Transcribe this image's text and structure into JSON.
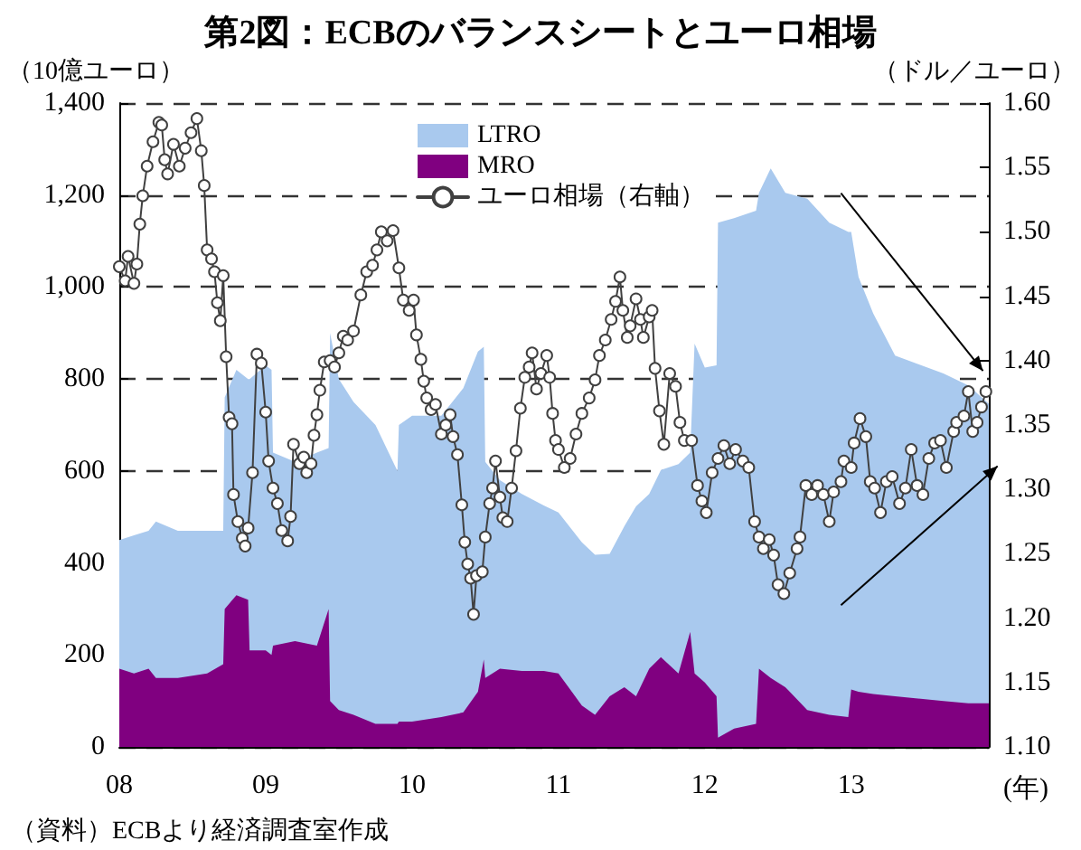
{
  "chart_data": {
    "type": "area",
    "title": "第2図：ECBのバランスシートとユーロ相場",
    "ylabel": "（10億ユーロ）",
    "y2label": "（ドル／ユーロ）",
    "xlabel": "(年)",
    "annotations": [
      "（資料）ECBより経済調査室作成"
    ],
    "stacked": true,
    "grid": "y",
    "legend": "top right",
    "line_style": "solid",
    "xlim": [
      2008,
      2013.94
    ],
    "xticks": [
      {
        "value": 2008,
        "label": "08"
      },
      {
        "value": 2009,
        "label": "09"
      },
      {
        "value": 2010,
        "label": "10"
      },
      {
        "value": 2011,
        "label": "11"
      },
      {
        "value": 2012,
        "label": "12"
      },
      {
        "value": 2013,
        "label": "13"
      }
    ],
    "ylim": [
      0,
      1400
    ],
    "yticks": [
      0,
      200,
      400,
      600,
      800,
      {
        "value": 1000,
        "label": "1,000"
      },
      {
        "value": 1200,
        "label": "1,200"
      },
      {
        "value": 1400,
        "label": "1,400"
      }
    ],
    "y2lim": [
      1.1,
      1.6
    ],
    "y2ticks": [
      {
        "value": 1.1,
        "label": "1.10"
      },
      1.15,
      {
        "value": 1.2,
        "label": "1.20"
      },
      1.25,
      {
        "value": 1.3,
        "label": "1.30"
      },
      1.35,
      {
        "value": 1.4,
        "label": "1.40"
      },
      1.45,
      {
        "value": 1.5,
        "label": "1.50"
      },
      1.55,
      {
        "value": 1.6,
        "label": "1.60"
      }
    ],
    "x": [
      2008.0,
      2008.1,
      2008.2,
      2008.25,
      2008.4,
      2008.6,
      2008.71,
      2008.72,
      2008.8,
      2008.88,
      2008.89,
      2009.0,
      2009.04,
      2009.05,
      2009.2,
      2009.35,
      2009.43,
      2009.44,
      2009.5,
      2009.6,
      2009.75,
      2009.9,
      2009.91,
      2010.0,
      2010.2,
      2010.35,
      2010.45,
      2010.49,
      2010.5,
      2010.6,
      2010.75,
      2010.9,
      2011.0,
      2011.16,
      2011.25,
      2011.35,
      2011.45,
      2011.53,
      2011.62,
      2011.7,
      2011.82,
      2011.9,
      2011.93,
      2012.0,
      2012.08,
      2012.09,
      2012.2,
      2012.35,
      2012.37,
      2012.45,
      2012.55,
      2012.7,
      2012.85,
      2012.98,
      2013.0,
      2013.05,
      2013.15,
      2013.3,
      2013.63,
      2013.8,
      2013.94
    ],
    "series": [
      {
        "name": "MRO",
        "color": "#800080",
        "values": [
          170,
          160,
          170,
          150,
          150,
          160,
          180,
          300,
          330,
          320,
          210,
          210,
          200,
          220,
          230,
          220,
          300,
          100,
          80,
          70,
          50,
          50,
          55,
          55,
          65,
          75,
          120,
          190,
          150,
          170,
          165,
          165,
          160,
          90,
          70,
          110,
          130,
          110,
          170,
          195,
          160,
          250,
          160,
          140,
          110,
          20,
          40,
          50,
          170,
          150,
          130,
          80,
          70,
          65,
          125,
          120,
          115,
          110,
          100,
          95,
          95
        ]
      },
      {
        "name": "LTRO",
        "color": "#a9c9ee",
        "values": [
          280,
          300,
          300,
          340,
          320,
          310,
          290,
          460,
          490,
          480,
          590,
          620,
          620,
          420,
          390,
          420,
          350,
          800,
          720,
          680,
          650,
          550,
          645,
          665,
          655,
          705,
          740,
          680,
          470,
          410,
          385,
          360,
          350,
          355,
          348,
          310,
          350,
          413,
          380,
          407,
          455,
          390,
          717,
          685,
          720,
          1120,
          1110,
          1116,
          1035,
          1108,
          1075,
          1112,
          1070,
          1055,
          995,
          902,
          828,
          741,
          712,
          691,
          651
        ]
      },
      {
        "name": "ユーロ相場（右軸）",
        "type": "line",
        "marker": "circle",
        "axis": "y2",
        "color": "#404040",
        "x": [
          2008.0,
          2008.04,
          2008.06,
          2008.1,
          2008.12,
          2008.14,
          2008.16,
          2008.19,
          2008.23,
          2008.27,
          2008.29,
          2008.31,
          2008.33,
          2008.37,
          2008.41,
          2008.45,
          2008.49,
          2008.53,
          2008.56,
          2008.58,
          2008.6,
          2008.63,
          2008.65,
          2008.67,
          2008.69,
          2008.71,
          2008.73,
          2008.75,
          2008.77,
          2008.78,
          2008.81,
          2008.84,
          2008.86,
          2008.88,
          2008.91,
          2008.94,
          2008.97,
          2009.0,
          2009.02,
          2009.05,
          2009.08,
          2009.11,
          2009.15,
          2009.17,
          2009.19,
          2009.23,
          2009.26,
          2009.28,
          2009.31,
          2009.33,
          2009.35,
          2009.37,
          2009.4,
          2009.44,
          2009.47,
          2009.5,
          2009.53,
          2009.56,
          2009.6,
          2009.65,
          2009.69,
          2009.73,
          2009.76,
          2009.79,
          2009.83,
          2009.87,
          2009.91,
          2009.94,
          2009.98,
          2010.01,
          2010.03,
          2010.06,
          2010.08,
          2010.1,
          2010.13,
          2010.16,
          2010.2,
          2010.23,
          2010.26,
          2010.28,
          2010.31,
          2010.34,
          2010.36,
          2010.38,
          2010.4,
          2010.42,
          2010.44,
          2010.48,
          2010.5,
          2010.53,
          2010.55,
          2010.57,
          2010.6,
          2010.62,
          2010.65,
          2010.68,
          2010.71,
          2010.74,
          2010.77,
          2010.8,
          2010.82,
          2010.85,
          2010.88,
          2010.92,
          2010.94,
          2010.96,
          2010.98,
          2011.0,
          2011.04,
          2011.08,
          2011.12,
          2011.16,
          2011.21,
          2011.25,
          2011.28,
          2011.32,
          2011.36,
          2011.39,
          2011.42,
          2011.44,
          2011.47,
          2011.49,
          2011.53,
          2011.56,
          2011.58,
          2011.62,
          2011.64,
          2011.66,
          2011.69,
          2011.72,
          2011.76,
          2011.8,
          2011.83,
          2011.86,
          2011.91,
          2011.95,
          2011.98,
          2012.01,
          2012.05,
          2012.09,
          2012.13,
          2012.17,
          2012.21,
          2012.26,
          2012.3,
          2012.34,
          2012.37,
          2012.4,
          2012.44,
          2012.47,
          2012.5,
          2012.54,
          2012.58,
          2012.63,
          2012.65,
          2012.69,
          2012.73,
          2012.77,
          2012.81,
          2012.85,
          2012.88,
          2012.93,
          2012.95,
          2013.0,
          2013.02,
          2013.06,
          2013.1,
          2013.13,
          2013.16,
          2013.2,
          2013.24,
          2013.28,
          2013.33,
          2013.37,
          2013.41,
          2013.45,
          2013.49,
          2013.53,
          2013.57,
          2013.61,
          2013.65,
          2013.7,
          2013.72,
          2013.77,
          2013.8,
          2013.83,
          2013.86,
          2013.89,
          2013.92
        ],
        "values": [
          1.473,
          1.462,
          1.481,
          1.46,
          1.475,
          1.506,
          1.528,
          1.551,
          1.57,
          1.585,
          1.583,
          1.556,
          1.545,
          1.568,
          1.551,
          1.565,
          1.577,
          1.588,
          1.563,
          1.536,
          1.486,
          1.479,
          1.469,
          1.445,
          1.431,
          1.466,
          1.403,
          1.356,
          1.351,
          1.296,
          1.275,
          1.262,
          1.256,
          1.27,
          1.313,
          1.405,
          1.398,
          1.36,
          1.322,
          1.301,
          1.289,
          1.268,
          1.26,
          1.279,
          1.335,
          1.32,
          1.325,
          1.313,
          1.32,
          1.342,
          1.358,
          1.377,
          1.399,
          1.4,
          1.395,
          1.406,
          1.419,
          1.416,
          1.423,
          1.451,
          1.469,
          1.474,
          1.486,
          1.5,
          1.493,
          1.501,
          1.472,
          1.447,
          1.439,
          1.447,
          1.42,
          1.401,
          1.384,
          1.371,
          1.362,
          1.366,
          1.343,
          1.35,
          1.358,
          1.341,
          1.327,
          1.288,
          1.259,
          1.242,
          1.231,
          1.203,
          1.233,
          1.236,
          1.263,
          1.289,
          1.301,
          1.322,
          1.294,
          1.278,
          1.275,
          1.301,
          1.33,
          1.363,
          1.387,
          1.395,
          1.406,
          1.378,
          1.39,
          1.404,
          1.387,
          1.359,
          1.338,
          1.331,
          1.317,
          1.324,
          1.343,
          1.359,
          1.371,
          1.385,
          1.404,
          1.416,
          1.432,
          1.446,
          1.465,
          1.439,
          1.418,
          1.427,
          1.448,
          1.432,
          1.418,
          1.434,
          1.439,
          1.394,
          1.361,
          1.335,
          1.39,
          1.38,
          1.352,
          1.338,
          1.338,
          1.303,
          1.291,
          1.282,
          1.313,
          1.324,
          1.334,
          1.32,
          1.331,
          1.322,
          1.317,
          1.275,
          1.263,
          1.254,
          1.261,
          1.249,
          1.226,
          1.219,
          1.235,
          1.254,
          1.263,
          1.303,
          1.296,
          1.303,
          1.296,
          1.275,
          1.298,
          1.306,
          1.322,
          1.317,
          1.336,
          1.355,
          1.341,
          1.306,
          1.301,
          1.282,
          1.306,
          1.31,
          1.289,
          1.301,
          1.331,
          1.303,
          1.296,
          1.324,
          1.336,
          1.338,
          1.317,
          1.345,
          1.352,
          1.357,
          1.376,
          1.345,
          1.352,
          1.364,
          1.376
        ]
      }
    ]
  }
}
